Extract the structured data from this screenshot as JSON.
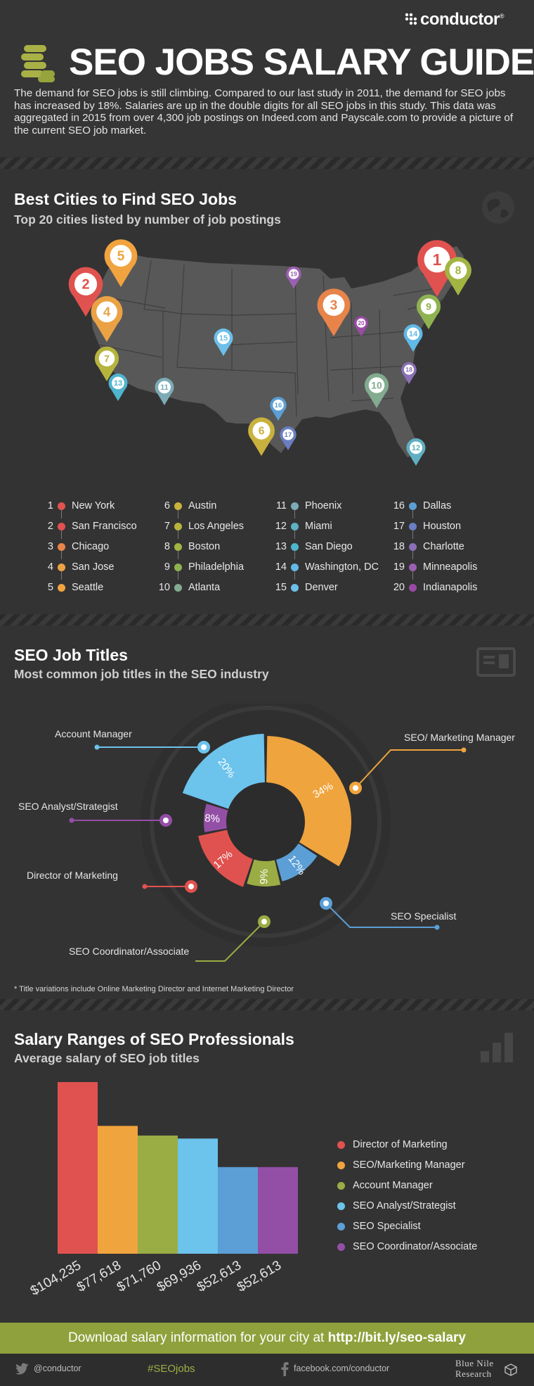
{
  "brand": {
    "logo_text": "conductor",
    "registered": "®"
  },
  "header": {
    "title": "SEO JOBS SALARY GUIDE",
    "intro": "The demand for SEO jobs is still climbing. Compared to our last study in 2011, the demand for SEO jobs has increased by 18%. Salaries are up in the double digits for all SEO jobs in this study.  This data was aggregated in 2015 from over 4,300 job postings on Indeed.com and Payscale.com to provide a picture of the current SEO job market."
  },
  "cities_section": {
    "title": "Best Cities to Find SEO Jobs",
    "subtitle": "Top 20 cities listed by number of job postings",
    "cities": [
      {
        "rank": "1",
        "name": "New York",
        "color": "#e0524f"
      },
      {
        "rank": "2",
        "name": "San Francisco",
        "color": "#e0524f"
      },
      {
        "rank": "3",
        "name": "Chicago",
        "color": "#e8844a"
      },
      {
        "rank": "4",
        "name": "San Jose",
        "color": "#eba245"
      },
      {
        "rank": "5",
        "name": "Seattle",
        "color": "#f0a33f"
      },
      {
        "rank": "6",
        "name": "Austin",
        "color": "#c9b13d"
      },
      {
        "rank": "7",
        "name": "Los Angeles",
        "color": "#b6b43d"
      },
      {
        "rank": "8",
        "name": "Boston",
        "color": "#a2b442"
      },
      {
        "rank": "9",
        "name": "Philadelphia",
        "color": "#8fb251"
      },
      {
        "rank": "10",
        "name": "Atlanta",
        "color": "#82ab8f"
      },
      {
        "rank": "11",
        "name": "Phoenix",
        "color": "#7cabb6"
      },
      {
        "rank": "12",
        "name": "Miami",
        "color": "#5fb0c2"
      },
      {
        "rank": "13",
        "name": "San Diego",
        "color": "#4fb4cf"
      },
      {
        "rank": "14",
        "name": "Washington, DC",
        "color": "#60b9e6"
      },
      {
        "rank": "15",
        "name": "Denver",
        "color": "#6cc0ea"
      },
      {
        "rank": "16",
        "name": "Dallas",
        "color": "#5b9fd5"
      },
      {
        "rank": "17",
        "name": "Houston",
        "color": "#6a7fc2"
      },
      {
        "rank": "18",
        "name": "Charlotte",
        "color": "#8a70b6"
      },
      {
        "rank": "19",
        "name": "Minneapolis",
        "color": "#9b60b3"
      },
      {
        "rank": "20",
        "name": "Indianapolis",
        "color": "#9a4aa6"
      }
    ]
  },
  "titles_section": {
    "title": "SEO Job Titles",
    "subtitle": "Most common job titles in the SEO industry",
    "footnote": "* Title variations include Online Marketing Director and Internet Marketing Director"
  },
  "salary_section": {
    "title": "Salary Ranges of SEO Professionals",
    "subtitle": "Average salary of SEO job titles"
  },
  "chart_data": [
    {
      "type": "pie",
      "categories": [
        "SEO/ Marketing Manager",
        "SEO Specialist",
        "SEO Coordinator/Associate",
        "Director of Marketing",
        "SEO Analyst/Strategist",
        "Account Manager"
      ],
      "values": [
        34,
        12,
        9,
        17,
        8,
        20
      ],
      "value_labels": [
        "34%",
        "12%",
        "9%",
        "17%",
        "8%",
        "20%"
      ],
      "colors": [
        "#f0a43e",
        "#5b9fd6",
        "#9aac44",
        "#e0524f",
        "#934fa6",
        "#6cc3ec"
      ]
    },
    {
      "type": "bar",
      "categories": [
        "Director of Marketing",
        "SEO/Marketing Manager",
        "Account Manager",
        "SEO Analyst/Strategist",
        "SEO Specialist",
        "SEO Coordinator/Associate"
      ],
      "values": [
        104235,
        77618,
        71760,
        69936,
        52613,
        52613
      ],
      "value_labels": [
        "$104,235",
        "$77,618",
        "$71,760",
        "$69,936",
        "$52,613",
        "$52,613"
      ],
      "colors": [
        "#e0524f",
        "#f0a43e",
        "#9aac44",
        "#6cc3ec",
        "#5b9fd6",
        "#934fa6"
      ],
      "legend": "right"
    }
  ],
  "footer": {
    "cta_prefix": "Download salary information for your city at",
    "cta_link": "http://bit.ly/seo-salary",
    "twitter": "@conductor",
    "hashtag": "#SEOjobs",
    "facebook": "facebook.com/conductor",
    "partner_line1": "Blue Nile",
    "partner_line2": "Research"
  }
}
